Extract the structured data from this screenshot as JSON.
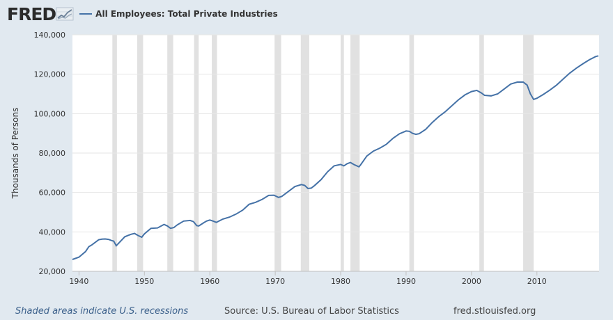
{
  "header": {
    "logo": "FRED",
    "logo_icon": "trend-line-icon",
    "series_title": "All Employees: Total Private Industries"
  },
  "footer": {
    "note": "Shaded areas indicate U.S. recessions",
    "source": "Source: U.S. Bureau of Labor Statistics",
    "site": "fred.stlouisfed.org"
  },
  "colors": {
    "line": "#4572a7",
    "recession": "#e1e1e1",
    "background": "#e1e9f0",
    "plot": "#ffffff",
    "grid": "#e6e6e6"
  },
  "chart_data": {
    "type": "line",
    "title": "All Employees: Total Private Industries",
    "ylabel": "Thousands of Persons",
    "xlabel": "",
    "xlim": [
      1939,
      2019.5
    ],
    "ylim": [
      20000,
      140000
    ],
    "grid": "horizontal",
    "xticks": [
      1940,
      1950,
      1960,
      1970,
      1980,
      1990,
      2000,
      2010
    ],
    "xtick_labels": [
      "1940",
      "1950",
      "1960",
      "1970",
      "1980",
      "1990",
      "2000",
      "2010"
    ],
    "yticks": [
      20000,
      40000,
      60000,
      80000,
      100000,
      120000,
      140000
    ],
    "ytick_labels": [
      "20,000",
      "40,000",
      "60,000",
      "80,000",
      "100,000",
      "120,000",
      "140,000"
    ],
    "recessions": [
      [
        1945.1,
        1945.8
      ],
      [
        1948.9,
        1949.8
      ],
      [
        1953.5,
        1954.4
      ],
      [
        1957.6,
        1958.3
      ],
      [
        1960.3,
        1961.1
      ],
      [
        1969.9,
        1970.9
      ],
      [
        1973.9,
        1975.2
      ],
      [
        1980.0,
        1980.5
      ],
      [
        1981.5,
        1982.9
      ],
      [
        1990.5,
        1991.2
      ],
      [
        2001.2,
        2001.9
      ],
      [
        2007.9,
        2009.5
      ]
    ],
    "series": [
      {
        "name": "All Employees: Total Private Industries",
        "x": [
          1939.0,
          1940.0,
          1941.0,
          1941.5,
          1942.0,
          1943.0,
          1943.5,
          1944.0,
          1944.5,
          1945.0,
          1945.3,
          1945.7,
          1946.0,
          1947.0,
          1947.5,
          1948.0,
          1948.5,
          1949.0,
          1949.6,
          1950.0,
          1951.0,
          1952.0,
          1953.0,
          1953.5,
          1954.0,
          1954.5,
          1955.0,
          1956.0,
          1957.0,
          1957.5,
          1958.0,
          1958.3,
          1959.0,
          1959.5,
          1960.0,
          1960.5,
          1961.0,
          1962.0,
          1963.0,
          1964.0,
          1965.0,
          1966.0,
          1967.0,
          1968.0,
          1969.0,
          1969.8,
          1970.5,
          1971.0,
          1972.0,
          1973.0,
          1974.0,
          1974.5,
          1975.0,
          1975.5,
          1976.0,
          1977.0,
          1978.0,
          1979.0,
          1980.0,
          1980.5,
          1981.0,
          1981.5,
          1982.0,
          1982.8,
          1983.0,
          1984.0,
          1985.0,
          1986.0,
          1987.0,
          1988.0,
          1989.0,
          1990.0,
          1990.5,
          1991.0,
          1991.5,
          1992.0,
          1993.0,
          1994.0,
          1995.0,
          1996.0,
          1997.0,
          1998.0,
          1999.0,
          2000.0,
          2000.8,
          2001.5,
          2002.0,
          2003.0,
          2004.0,
          2005.0,
          2006.0,
          2007.0,
          2007.9,
          2008.5,
          2009.0,
          2009.5,
          2010.0,
          2011.0,
          2012.0,
          2013.0,
          2014.0,
          2015.0,
          2016.0,
          2017.0,
          2018.0,
          2019.0,
          2019.4
        ],
        "values": [
          26000,
          27200,
          30000,
          32500,
          33500,
          36000,
          36300,
          36400,
          36200,
          35600,
          35300,
          33000,
          34000,
          37500,
          38200,
          38800,
          39200,
          38200,
          37300,
          39000,
          41800,
          42000,
          43800,
          43000,
          41800,
          42200,
          43500,
          45500,
          45800,
          45200,
          43200,
          43000,
          44500,
          45500,
          46000,
          45500,
          44800,
          46500,
          47500,
          49000,
          51000,
          54000,
          55000,
          56500,
          58500,
          58600,
          57500,
          58000,
          60500,
          63000,
          64000,
          63600,
          62000,
          62200,
          63500,
          66500,
          70500,
          73500,
          74200,
          73500,
          74600,
          75200,
          74200,
          73000,
          73800,
          78500,
          81000,
          82500,
          84500,
          87500,
          89800,
          91200,
          91000,
          90000,
          89500,
          89800,
          92000,
          95500,
          98500,
          101000,
          104000,
          107000,
          109500,
          111200,
          111800,
          110500,
          109300,
          109000,
          110000,
          112500,
          115000,
          116000,
          116000,
          114500,
          110000,
          107200,
          107800,
          109800,
          112000,
          114500,
          117500,
          120500,
          123000,
          125200,
          127300,
          129000,
          129300
        ]
      }
    ]
  }
}
